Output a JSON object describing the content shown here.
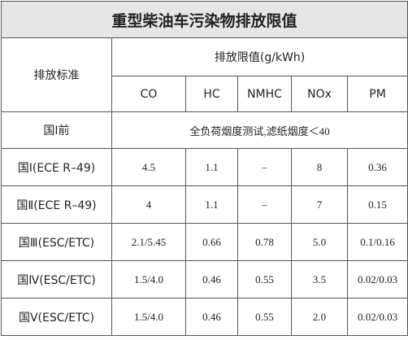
{
  "title": "重型柴油车污染物排放限值",
  "table": {
    "header": {
      "standard": "排放标准",
      "limit": "排放限值(g/kWh)",
      "columns": [
        "CO",
        "HC",
        "NMHC",
        "NOx",
        "PM"
      ]
    },
    "rows": [
      [
        "国Ⅰ前",
        "全负荷烟度测试,滤纸烟度＜40"
      ],
      [
        "国Ⅰ(ECE R–49)",
        "4.5",
        "1.1",
        "–",
        "8",
        "0.36"
      ],
      [
        "国Ⅱ(ECE R–49)",
        "4",
        "1.1",
        "–",
        "7",
        "0.15"
      ],
      [
        "国Ⅲ(ESC/ETC)",
        "2.1/5.45",
        "0.66",
        "0.78",
        "5.0",
        "0.1/0.16"
      ],
      [
        "国Ⅳ(ESC/ETC)",
        "1.5/4.0",
        "0.46",
        "0.55",
        "3.5",
        "0.02/0.03"
      ],
      [
        "国Ⅴ(ESC/ETC)",
        "1.5/4.0",
        "0.46",
        "0.55",
        "2.0",
        "0.02/0.03"
      ]
    ]
  }
}
